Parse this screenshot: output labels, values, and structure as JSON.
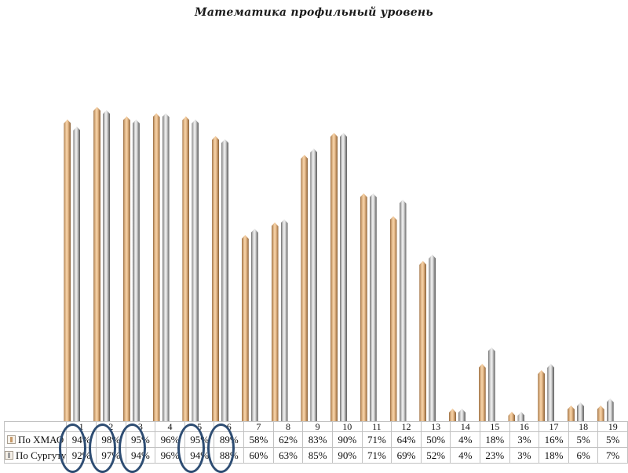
{
  "title": "Математика профильный уровень",
  "chart_data": {
    "type": "bar",
    "title": "Математика профильный уровень",
    "categories": [
      "1",
      "2",
      "3",
      "4",
      "5",
      "6",
      "7",
      "8",
      "9",
      "10",
      "11",
      "12",
      "13",
      "14",
      "15",
      "16",
      "17",
      "18",
      "19"
    ],
    "series": [
      {
        "name": "По ХМАО",
        "values": [
          94,
          98,
          95,
          96,
          95,
          89,
          58,
          62,
          83,
          90,
          71,
          64,
          50,
          4,
          18,
          3,
          16,
          5,
          5
        ],
        "labels": [
          "94%",
          "98%",
          "95%",
          "96%",
          "95%",
          "89%",
          "58%",
          "62%",
          "83%",
          "90%",
          "71%",
          "64%",
          "50%",
          "4%",
          "18%",
          "3%",
          "16%",
          "5%",
          "5%"
        ],
        "color": "#c79a6a"
      },
      {
        "name": "По Сургуту",
        "values": [
          92,
          97,
          94,
          96,
          94,
          88,
          60,
          63,
          85,
          90,
          71,
          69,
          52,
          4,
          23,
          3,
          18,
          6,
          7
        ],
        "labels": [
          "92%",
          "97%",
          "94%",
          "96%",
          "94%",
          "88%",
          "60%",
          "63%",
          "85%",
          "90%",
          "71%",
          "69%",
          "52%",
          "4%",
          "23%",
          "3%",
          "18%",
          "6%",
          "7%"
        ],
        "color": "#9e9e9e"
      }
    ],
    "ylim": [
      0,
      100
    ],
    "unit": "percent",
    "grid": false,
    "y_axis_visible": false,
    "legend_position": "data-table-left",
    "annotations": {
      "circled_categories": [
        "1",
        "2",
        "3",
        "5",
        "6"
      ],
      "circle_color": "#2e4d73"
    }
  }
}
